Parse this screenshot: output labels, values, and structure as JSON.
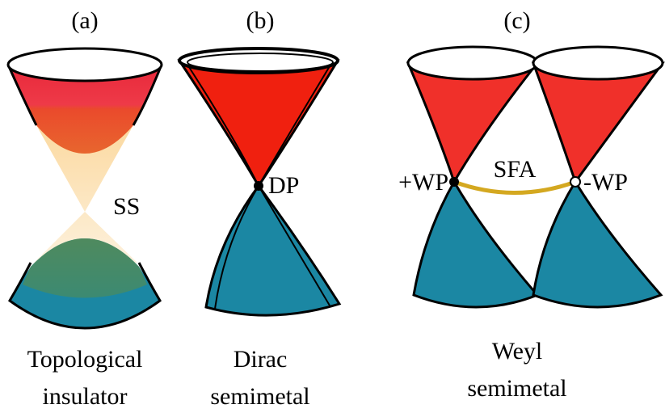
{
  "panels": [
    {
      "label": "(a)",
      "caption": [
        "Topological",
        "insulator"
      ],
      "annotations": [
        "SS"
      ]
    },
    {
      "label": "(b)",
      "caption": [
        "Dirac",
        "semimetal"
      ],
      "annotations": [
        "DP"
      ]
    },
    {
      "label": "(c)",
      "caption": [
        "Weyl",
        "semimetal"
      ],
      "annotations": [
        "+WP",
        "SFA",
        "-WP"
      ]
    }
  ]
}
